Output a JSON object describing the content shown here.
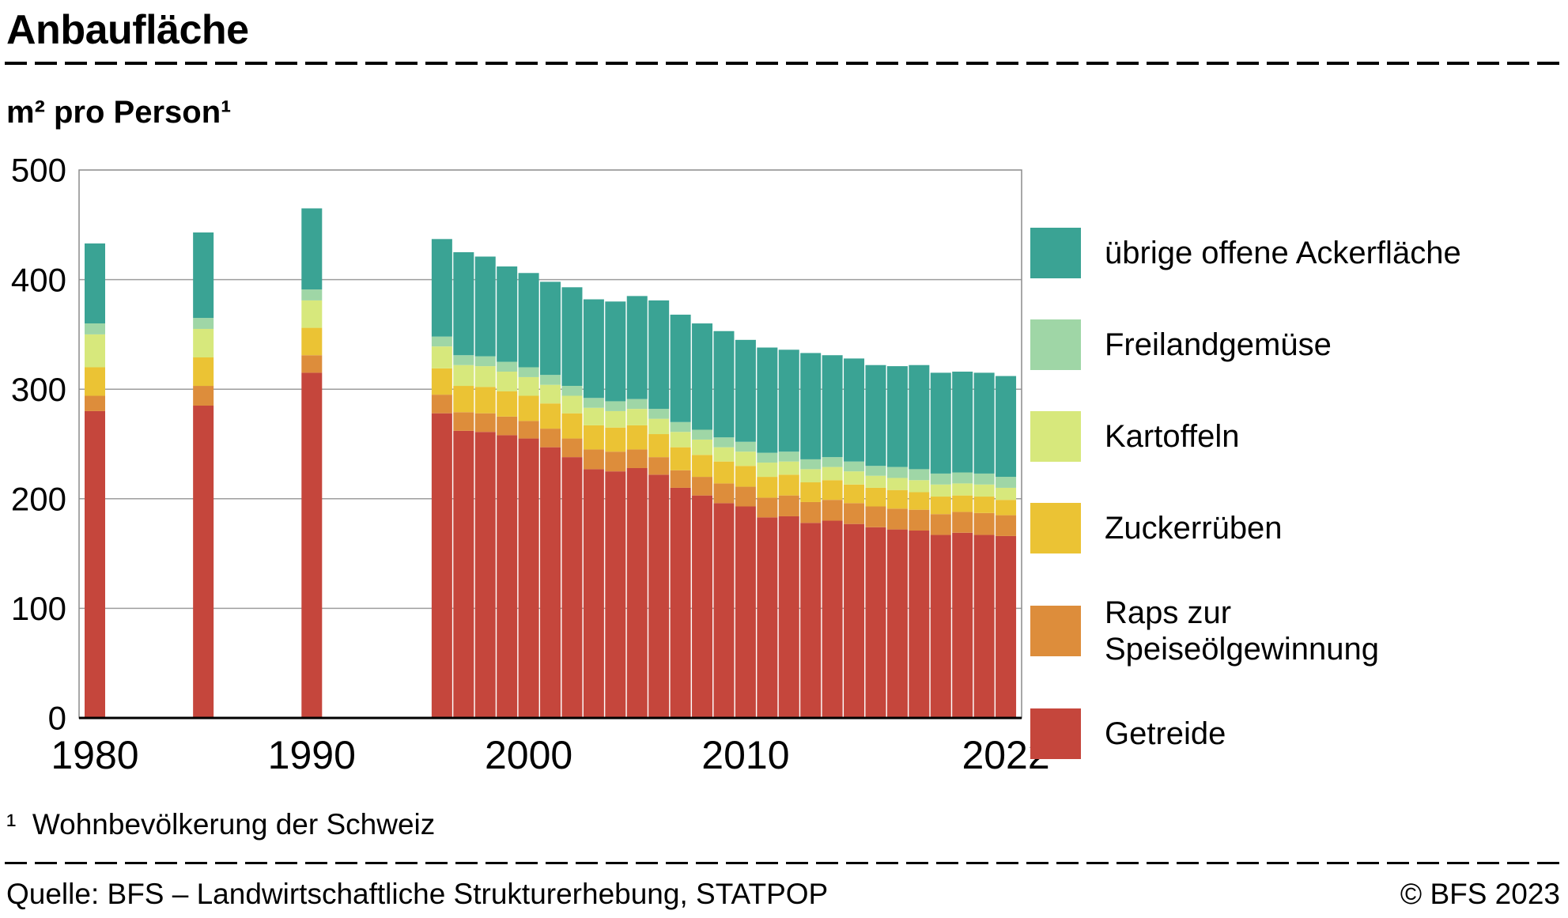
{
  "header": {
    "title": "Anbaufläche",
    "subtitle": "m² pro Person¹"
  },
  "footnote": "¹  Wohnbevölkerung der Schweiz",
  "footer": {
    "source": "Quelle: BFS – Landwirtschaftliche Strukturerhebung, STATPOP",
    "copyright": "© BFS 2023"
  },
  "colors": {
    "getreide": "#c5463c",
    "raps": "#dd8d3b",
    "zuckerrueben": "#ebc334",
    "kartoffeln": "#d7e87c",
    "freilandgemuese": "#9fd6a6",
    "uebrige": "#3aa394",
    "grid": "#9d9d9d",
    "frame": "#8b8b8b",
    "axis": "#000000"
  },
  "chart_data": {
    "type": "bar",
    "stacked": true,
    "title": "Anbaufläche",
    "ylabel": "m² pro Person",
    "xlabel": "",
    "ylim": [
      0,
      500
    ],
    "yticks": [
      0,
      100,
      200,
      300,
      400,
      500
    ],
    "xticks": [
      1980,
      1990,
      2000,
      2010,
      2022
    ],
    "grid": true,
    "legend_position": "right",
    "x": [
      1980,
      1985,
      1990,
      1996,
      1997,
      1998,
      1999,
      2000,
      2001,
      2002,
      2003,
      2004,
      2005,
      2006,
      2007,
      2008,
      2009,
      2010,
      2011,
      2012,
      2013,
      2014,
      2015,
      2016,
      2017,
      2018,
      2019,
      2020,
      2021,
      2022
    ],
    "series": [
      {
        "name": "Getreide",
        "color": "#c5463c",
        "values": [
          280,
          285,
          315,
          278,
          262,
          261,
          258,
          255,
          247,
          238,
          227,
          225,
          228,
          222,
          210,
          203,
          196,
          193,
          183,
          184,
          178,
          180,
          177,
          174,
          172,
          171,
          167,
          169,
          167,
          166
        ]
      },
      {
        "name": "Raps zur Speiseölgewinnung",
        "color": "#dd8d3b",
        "values": [
          14,
          18,
          16,
          17,
          17,
          17,
          17,
          16,
          17,
          17,
          18,
          18,
          17,
          16,
          16,
          17,
          18,
          18,
          18,
          19,
          19,
          19,
          19,
          19,
          19,
          19,
          19,
          19,
          20,
          19
        ]
      },
      {
        "name": "Zuckerrüben",
        "color": "#ebc334",
        "values": [
          26,
          26,
          25,
          24,
          24,
          24,
          23,
          23,
          23,
          23,
          22,
          22,
          22,
          21,
          21,
          20,
          20,
          19,
          19,
          19,
          18,
          18,
          17,
          17,
          17,
          16,
          16,
          15,
          15,
          14
        ]
      },
      {
        "name": "Kartoffeln",
        "color": "#d7e87c",
        "values": [
          30,
          26,
          25,
          20,
          19,
          19,
          18,
          17,
          17,
          16,
          16,
          15,
          15,
          14,
          14,
          14,
          13,
          13,
          13,
          12,
          12,
          12,
          12,
          11,
          11,
          11,
          11,
          11,
          11,
          11
        ]
      },
      {
        "name": "Freilandgemüse",
        "color": "#9fd6a6",
        "values": [
          10,
          10,
          10,
          9,
          9,
          9,
          9,
          9,
          9,
          9,
          9,
          9,
          9,
          9,
          9,
          9,
          9,
          9,
          9,
          9,
          9,
          9,
          9,
          9,
          10,
          10,
          10,
          10,
          10,
          10
        ]
      },
      {
        "name": "übrige offene Ackerfläche",
        "color": "#3aa394",
        "values": [
          73,
          78,
          74,
          89,
          94,
          91,
          87,
          86,
          85,
          90,
          90,
          91,
          94,
          99,
          98,
          97,
          97,
          93,
          96,
          93,
          97,
          93,
          94,
          92,
          92,
          95,
          92,
          92,
          92,
          92
        ]
      }
    ],
    "legend": [
      {
        "lines": [
          "übrige offene Ackerfläche"
        ],
        "color": "#3aa394"
      },
      {
        "lines": [
          "Freilandgemüse"
        ],
        "color": "#9fd6a6"
      },
      {
        "lines": [
          "Kartoffeln"
        ],
        "color": "#d7e87c"
      },
      {
        "lines": [
          "Zuckerrüben"
        ],
        "color": "#ebc334"
      },
      {
        "lines": [
          "Raps zur",
          "Speiseölgewinnung"
        ],
        "color": "#dd8d3b"
      },
      {
        "lines": [
          "Getreide"
        ],
        "color": "#c5463c"
      }
    ]
  }
}
